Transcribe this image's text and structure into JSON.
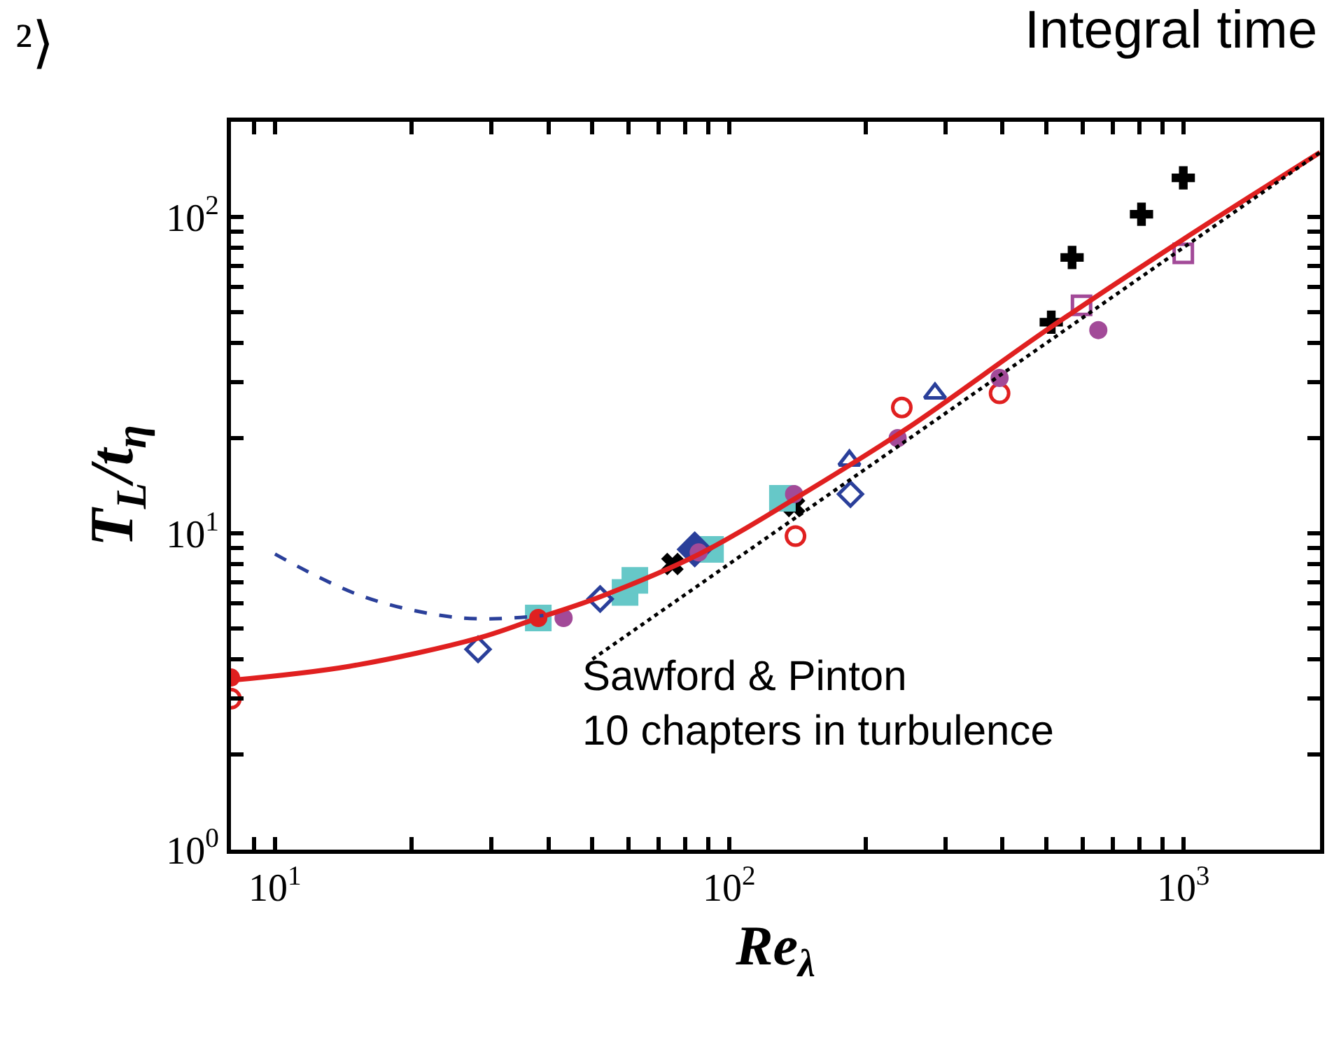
{
  "chart_data": {
    "type": "scatter",
    "title": "Integral time",
    "xlabel": "Re$_{λ}$",
    "ylabel": "T$_{L}$/t$_{η}$",
    "log": "xy",
    "legend": false,
    "xlim": [
      8,
      2000
    ],
    "ylim": [
      1,
      200
    ],
    "xticks": [
      {
        "value": 8,
        "label": null
      },
      {
        "value": 9,
        "label": null
      },
      {
        "value": 10,
        "label": "10$^{1}$"
      },
      {
        "value": 20,
        "label": null
      },
      {
        "value": 30,
        "label": null
      },
      {
        "value": 40,
        "label": null
      },
      {
        "value": 50,
        "label": null
      },
      {
        "value": 60,
        "label": null
      },
      {
        "value": 70,
        "label": null
      },
      {
        "value": 80,
        "label": null
      },
      {
        "value": 90,
        "label": null
      },
      {
        "value": 100,
        "label": "10$^{2}$"
      },
      {
        "value": 200,
        "label": null
      },
      {
        "value": 300,
        "label": null
      },
      {
        "value": 400,
        "label": null
      },
      {
        "value": 500,
        "label": null
      },
      {
        "value": 600,
        "label": null
      },
      {
        "value": 700,
        "label": null
      },
      {
        "value": 800,
        "label": null
      },
      {
        "value": 900,
        "label": null
      },
      {
        "value": 1000,
        "label": "10$^{3}$"
      },
      {
        "value": 2000,
        "label": null
      }
    ],
    "yticks": [
      {
        "value": 1,
        "label": "10$^{0}$"
      },
      {
        "value": 2,
        "label": null
      },
      {
        "value": 3,
        "label": null
      },
      {
        "value": 4,
        "label": null
      },
      {
        "value": 5,
        "label": null
      },
      {
        "value": 6,
        "label": null
      },
      {
        "value": 7,
        "label": null
      },
      {
        "value": 8,
        "label": null
      },
      {
        "value": 9,
        "label": null
      },
      {
        "value": 10,
        "label": "10$^{1}$"
      },
      {
        "value": 20,
        "label": null
      },
      {
        "value": 30,
        "label": null
      },
      {
        "value": 40,
        "label": null
      },
      {
        "value": 50,
        "label": null
      },
      {
        "value": 60,
        "label": null
      },
      {
        "value": 70,
        "label": null
      },
      {
        "value": 80,
        "label": null
      },
      {
        "value": 90,
        "label": null
      },
      {
        "value": 100,
        "label": "10$^{2}$"
      },
      {
        "value": 200,
        "label": null
      }
    ],
    "annotations": [
      "²⟩",
      "Sawford & Pinton\n10 chapters in turbulence"
    ],
    "series": [
      {
        "type": "line",
        "color": "#e02020",
        "line_style": "solid",
        "marker": "none",
        "x": [
          8,
          14.6,
          28,
          38,
          52,
          86,
          140,
          247,
          500,
          1000,
          2000
        ],
        "values": [
          3.43,
          3.8,
          4.66,
          5.4,
          6.3,
          8.6,
          12.9,
          21.5,
          43.9,
          85,
          160
        ]
      },
      {
        "type": "line",
        "color": "#2a3f9a",
        "line_style": "dashed",
        "marker": "none",
        "x": [
          10,
          15.7,
          25.8,
          39
        ],
        "values": [
          8.6,
          6.3,
          5.4,
          5.5
        ]
      },
      {
        "type": "line",
        "color": "#000000",
        "line_style": "dotted",
        "marker": "none",
        "x": [
          50,
          2000
        ],
        "values": [
          4.0,
          160
        ]
      },
      {
        "color": "#000000",
        "marker": "cross",
        "x": [
          512,
          569,
          809,
          1000
        ],
        "values": [
          46.5,
          74.5,
          102,
          133
        ]
      },
      {
        "color": "#000000",
        "marker": "x",
        "x": [
          75,
          139
        ],
        "values": [
          8.0,
          12.2
        ]
      },
      {
        "color": "#a24a98",
        "marker": "square-open",
        "x": [
          597,
          1000
        ],
        "values": [
          52.6,
          76.7
        ]
      },
      {
        "color": "#66c8c8",
        "marker": "square",
        "x": [
          38,
          59,
          62,
          91,
          131
        ],
        "values": [
          5.4,
          6.5,
          7.1,
          8.9,
          12.9
        ]
      },
      {
        "color": "#2a3f9a",
        "marker": "diamond-open",
        "x": [
          28,
          52,
          185
        ],
        "values": [
          4.3,
          6.2,
          13.3
        ]
      },
      {
        "color": "#2a3f9a",
        "marker": "diamond",
        "x": [
          84
        ],
        "values": [
          8.9
        ]
      },
      {
        "color": "#2a3f9a",
        "marker": "triangle-open",
        "x": [
          184,
          284
        ],
        "values": [
          17,
          27.7
        ]
      },
      {
        "color": "#e02020",
        "marker": "circle-open",
        "x": [
          8,
          140,
          240,
          394
        ],
        "values": [
          3.0,
          9.8,
          25,
          27.7
        ]
      },
      {
        "color": "#e02020",
        "marker": "circle",
        "x": [
          8,
          38
        ],
        "values": [
          3.5,
          5.4
        ]
      },
      {
        "color": "#a24a98",
        "marker": "circle",
        "x": [
          43.2,
          85.7,
          139,
          235,
          394,
          650
        ],
        "values": [
          5.4,
          8.7,
          13.3,
          20,
          31,
          43.9
        ]
      }
    ]
  }
}
